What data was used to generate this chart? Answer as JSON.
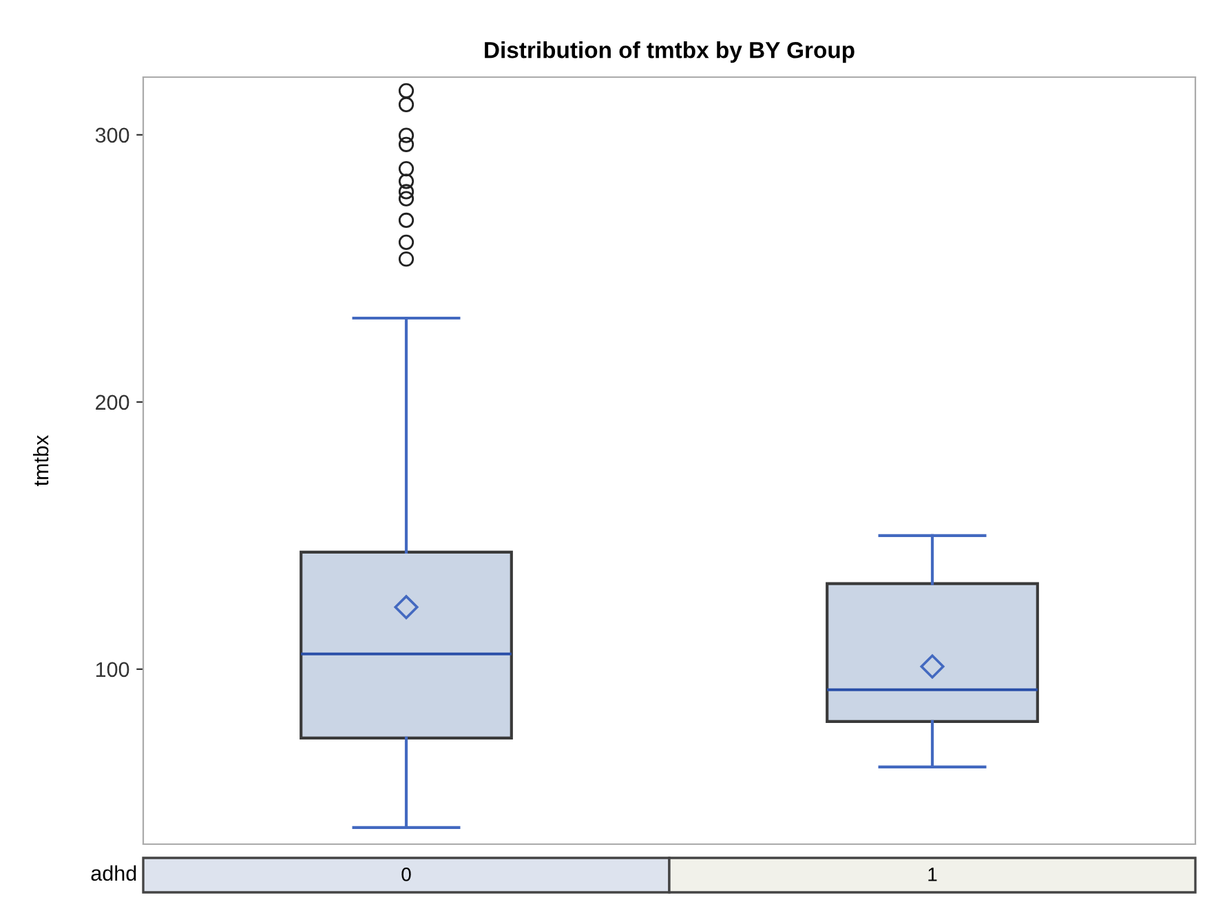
{
  "chart_data": {
    "type": "box",
    "title": "Distribution of tmtbx by BY Group",
    "ylabel": "tmtbx",
    "xlabel": "adhd",
    "categories": [
      "0",
      "1"
    ],
    "boxes": [
      {
        "low": 40.7,
        "q1": 74.2,
        "median": 105.7,
        "q3": 143.8,
        "high": 231.4,
        "mean": 123.2,
        "outliers": [
          316.5,
          311.3,
          299.8,
          296.4,
          287.3,
          282.6,
          278.7,
          276.1,
          268,
          259.8,
          253.5
        ]
      },
      {
        "low": 63.4,
        "q1": 80.4,
        "median": 92.3,
        "q3": 132,
        "high": 150,
        "mean": 101
      }
    ],
    "color": "#cad5e5",
    "ylim": [
      34.5,
      321.6
    ],
    "yticks": [
      100,
      200,
      300
    ],
    "grid": false,
    "marker": "diamond"
  }
}
